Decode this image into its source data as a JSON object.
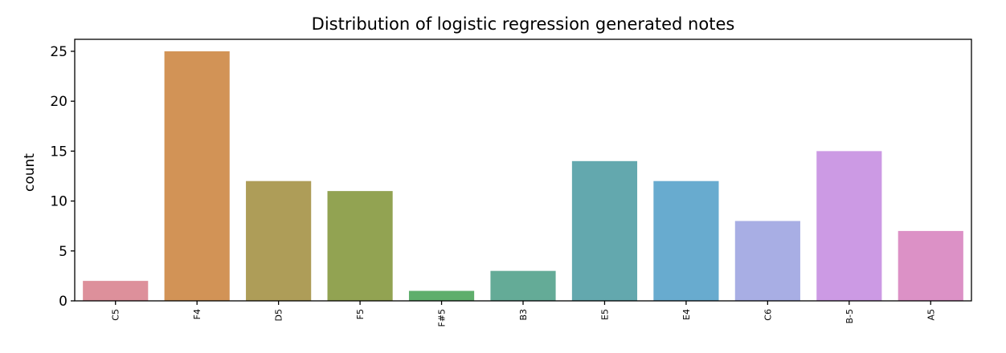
{
  "chart_data": {
    "type": "bar",
    "title": "Distribution of logistic regression generated notes",
    "xlabel": "",
    "ylabel": "count",
    "categories": [
      "C5",
      "F4",
      "D5",
      "F5",
      "F#5",
      "B3",
      "E5",
      "E4",
      "C6",
      "B-5",
      "A5"
    ],
    "values": [
      2,
      25,
      12,
      11,
      1,
      3,
      14,
      12,
      8,
      15,
      7
    ],
    "colors": [
      "#dd909b",
      "#d29356",
      "#ae9d58",
      "#92a352",
      "#5fae6c",
      "#64ab97",
      "#63a8ae",
      "#68abcf",
      "#a8aee4",
      "#cc9ae4",
      "#dc91c6"
    ],
    "yticks": [
      0,
      5,
      10,
      15,
      20,
      25
    ],
    "ylim": [
      0,
      26.2
    ],
    "grid": false,
    "legend": "none"
  }
}
